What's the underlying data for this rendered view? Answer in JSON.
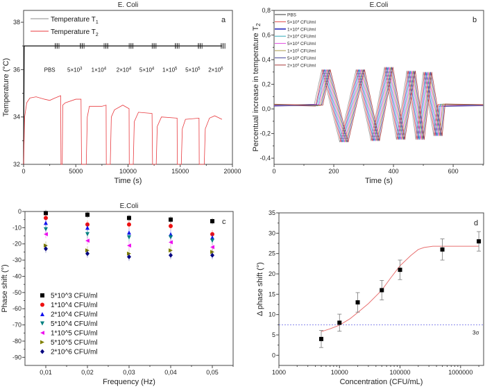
{
  "chart_data": [
    {
      "id": "a",
      "type": "line",
      "title": "E. Coli",
      "panel_label": "a",
      "xlabel": "Time (s)",
      "ylabel": "Temperature (°C)",
      "xlim": [
        0,
        20000
      ],
      "ylim": [
        32,
        38.5
      ],
      "xticks": [
        0,
        5000,
        10000,
        15000,
        20000
      ],
      "xtick_labels": [
        "0",
        "5000",
        "10000",
        "15000",
        "20000"
      ],
      "yticks": [
        32,
        34,
        36,
        38
      ],
      "ytick_labels": [
        "32",
        "34",
        "36",
        "38"
      ],
      "series": [
        {
          "name": "Temperature T",
          "sub": "1",
          "color": "#111111",
          "x": [
            0,
            60,
            19000
          ],
          "y": [
            32,
            37,
            37
          ]
        },
        {
          "name": "Temperature T",
          "sub": "2",
          "color": "#e8383d",
          "x": [
            0,
            100,
            300,
            600,
            1200,
            2000,
            2500,
            3000,
            3550,
            3580,
            3700,
            3750,
            4000,
            5000,
            5500,
            5550,
            6000,
            6100,
            6300,
            7500,
            7900,
            7920,
            8300,
            8400,
            8700,
            9500,
            10100,
            10120,
            10500,
            10600,
            11000,
            12300,
            12350,
            12700,
            12800,
            13200,
            14700,
            14720,
            15100,
            15200,
            15500,
            16800,
            16820,
            17300,
            17400,
            17800,
            18300,
            19000
          ],
          "y": [
            32,
            34,
            34.6,
            34.8,
            34.85,
            34.75,
            34.7,
            34.8,
            34.9,
            32,
            32,
            34.5,
            34.6,
            34.75,
            34.75,
            32,
            32,
            34,
            34.45,
            34.45,
            34.5,
            32,
            32,
            34,
            34.3,
            34.5,
            34.35,
            32,
            32,
            33.8,
            34.2,
            34.15,
            32,
            32,
            33.6,
            34,
            33.95,
            32,
            32,
            33.5,
            33.9,
            33.95,
            32,
            32,
            33.5,
            33.95,
            34.05,
            33.9
          ]
        }
      ],
      "annotations": [
        {
          "base": "PBS",
          "exp": "",
          "x": 2500,
          "y": 36
        },
        {
          "base": "5×10",
          "exp": "3",
          "x": 4900,
          "y": 36
        },
        {
          "base": "1×10",
          "exp": "4",
          "x": 7200,
          "y": 36
        },
        {
          "base": "2×10",
          "exp": "4",
          "x": 9600,
          "y": 36
        },
        {
          "base": "5×10",
          "exp": "4",
          "x": 11800,
          "y": 36
        },
        {
          "base": "1×10",
          "exp": "5",
          "x": 14000,
          "y": 36
        },
        {
          "base": "5×10",
          "exp": "5",
          "x": 16200,
          "y": 36
        },
        {
          "base": "2×10",
          "exp": "6",
          "x": 18400,
          "y": 36
        }
      ]
    },
    {
      "id": "b",
      "type": "line",
      "title": "E.Coli",
      "panel_label": "b",
      "xlabel": "Time (s)",
      "ylabel": "Percentual increase in temperature T",
      "ylabel_sub": "2",
      "xlim": [
        0,
        702
      ],
      "ylim": [
        -0.45,
        0.8
      ],
      "xticks": [
        0,
        200,
        400,
        600
      ],
      "xtick_labels": [
        "0",
        "200",
        "400",
        "600"
      ],
      "yticks": [
        -0.4,
        -0.2,
        0,
        0.2,
        0.4,
        0.6,
        0.8
      ],
      "ytick_labels": [
        "-0,4",
        "-0,2",
        "0,0",
        "0,2",
        "0,4",
        "0,6",
        "0,8"
      ],
      "y_pattern": [
        0.03,
        0.03,
        0.32,
        -0.27,
        0.32,
        -0.26,
        0.34,
        -0.25,
        0.31,
        -0.25,
        0.3,
        -0.22,
        0.03,
        0.03
      ],
      "series": [
        {
          "name": "PBS",
          "exp": "",
          "unit": "",
          "color": "#9a9a9a",
          "x": [
            0,
            135,
            160,
            220,
            275,
            325,
            370,
            410,
            445,
            475,
            500,
            535,
            545,
            700
          ]
        },
        {
          "name": "5×10",
          "exp": "3",
          "unit": " CFU/ml",
          "color": "#e04848",
          "x": [
            0,
            139,
            164,
            224,
            279,
            329,
            374,
            414,
            449,
            479,
            504,
            539,
            549,
            700
          ]
        },
        {
          "name": "1×10",
          "exp": "4",
          "unit": " CFU/ml",
          "color": "#4848c8",
          "x": [
            0,
            143,
            168,
            228,
            283,
            333,
            378,
            418,
            453,
            483,
            508,
            543,
            553,
            700
          ]
        },
        {
          "name": "2×10",
          "exp": "4",
          "unit": " CFU/ml",
          "color": "#30a8b8",
          "x": [
            0,
            147,
            172,
            232,
            287,
            337,
            382,
            422,
            457,
            487,
            512,
            547,
            557,
            700
          ]
        },
        {
          "name": "5×10",
          "exp": "4",
          "unit": " CFU/ml",
          "color": "#e048e0",
          "x": [
            0,
            151,
            176,
            236,
            291,
            341,
            386,
            426,
            461,
            491,
            516,
            551,
            561,
            700
          ]
        },
        {
          "name": "1×10",
          "exp": "5",
          "unit": " CFU/ml",
          "color": "#a89848",
          "x": [
            0,
            155,
            180,
            240,
            295,
            345,
            390,
            430,
            465,
            495,
            520,
            555,
            565,
            700
          ]
        },
        {
          "name": "5×10",
          "exp": "5",
          "unit": " CFU/ml",
          "color": "#404098",
          "x": [
            0,
            159,
            184,
            244,
            299,
            349,
            394,
            434,
            469,
            499,
            524,
            559,
            569,
            700
          ]
        },
        {
          "name": "2×10",
          "exp": "6",
          "unit": " CFU/ml",
          "color": "#a83838",
          "x": [
            0,
            163,
            188,
            248,
            303,
            353,
            398,
            438,
            473,
            503,
            528,
            563,
            573,
            700
          ]
        }
      ]
    },
    {
      "id": "c",
      "type": "scatter",
      "title": "E.Coli",
      "panel_label": "c",
      "xlabel": "Frequency (Hz)",
      "ylabel": "Phase shift (°)",
      "xlim": [
        0.005,
        0.055
      ],
      "ylim": [
        -95,
        0
      ],
      "xticks": [
        0.01,
        0.02,
        0.03,
        0.04,
        0.05
      ],
      "xtick_labels": [
        "0,01",
        "0,02",
        "0,03",
        "0,04",
        "0,05"
      ],
      "yticks": [
        0,
        -10,
        -20,
        -30,
        -40,
        -50,
        -60,
        -70,
        -80,
        -90
      ],
      "ytick_labels": [
        "0",
        "-10",
        "-20",
        "-30",
        "-40",
        "-50",
        "-60",
        "-70",
        "-80",
        "-90"
      ],
      "x": [
        0.01,
        0.02,
        0.03,
        0.04,
        0.05
      ],
      "series": [
        {
          "name": "5*10^3 CFU/ml",
          "marker": "square",
          "color": "#000000",
          "y": [
            -1,
            -2,
            -4,
            -5,
            -6
          ],
          "err": 2
        },
        {
          "name": "1*10^4 CFU/ml",
          "marker": "circle",
          "color": "#ee1111",
          "y": [
            -4,
            -8,
            -8,
            -9,
            -14
          ],
          "err": 2.5
        },
        {
          "name": "2*10^4 CFU/ml",
          "marker": "triangle-up",
          "color": "#1111ee",
          "y": [
            -7,
            -10,
            -13,
            -14,
            -16
          ],
          "err": 2.5
        },
        {
          "name": "5*10^4 CFU/ml",
          "marker": "triangle-down",
          "color": "#008080",
          "y": [
            -11,
            -14,
            -16,
            -16,
            -18
          ],
          "err": 2.5
        },
        {
          "name": "1*10^5 CFU/ml",
          "marker": "triangle-left",
          "color": "#ee11ee",
          "y": [
            -14,
            -18,
            -21,
            -19,
            -22
          ],
          "err": 2.5
        },
        {
          "name": "5*10^5 CFU/ml",
          "marker": "triangle-right",
          "color": "#808000",
          "y": [
            -21,
            -24,
            -26,
            -24,
            -25
          ],
          "err": 2.5
        },
        {
          "name": "2*10^6 CFU/ml",
          "marker": "diamond",
          "color": "#000080",
          "y": [
            -23,
            -26,
            -28,
            -27,
            -27
          ],
          "err": 2.5
        }
      ]
    },
    {
      "id": "d",
      "type": "scatter",
      "title": "",
      "panel_label": "d",
      "xlabel": "Concentration (CFU/mL)",
      "ylabel": "Δ phase shift (°)",
      "xscale": "log",
      "xlim": [
        1000,
        2400000
      ],
      "ylim": [
        -2.5,
        35
      ],
      "xticks": [
        1000,
        10000,
        100000,
        1000000
      ],
      "xtick_labels": [
        "1000",
        "10000",
        "100000",
        "1000000"
      ],
      "yticks": [
        0,
        5,
        10,
        15,
        20,
        25,
        30,
        35
      ],
      "ytick_labels": [
        "0",
        "5",
        "10",
        "15",
        "20",
        "25",
        "30",
        "35"
      ],
      "points": {
        "x": [
          5000,
          10000,
          20000,
          50000,
          100000,
          500000,
          2000000
        ],
        "y": [
          4,
          8,
          13,
          16,
          21,
          26,
          28
        ],
        "err": [
          2.1,
          2.1,
          2.4,
          2.4,
          2.4,
          2.6,
          2.4
        ],
        "color": "#000000"
      },
      "fit": {
        "color": "#e87070",
        "x": [
          5000,
          7000,
          10000,
          15000,
          20000,
          30000,
          50000,
          70000,
          100000,
          150000,
          200000,
          250000,
          350000,
          2000000
        ],
        "y": [
          5.8,
          6.5,
          7.4,
          9,
          10.5,
          12.7,
          16,
          19,
          22,
          24.5,
          26,
          26.5,
          26.8,
          26.8
        ]
      },
      "threshold": {
        "label": "3σ",
        "y": 7.5,
        "color": "#4040e0"
      }
    }
  ]
}
